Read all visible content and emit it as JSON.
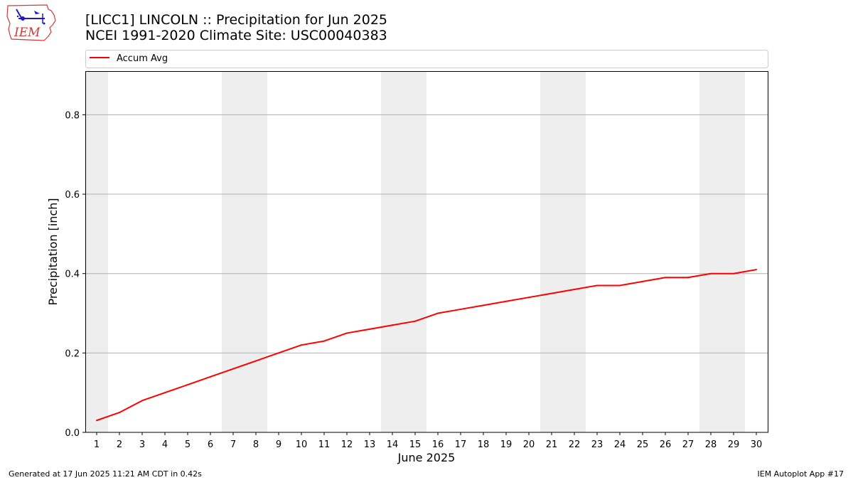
{
  "header": {
    "title_line1": "[LICC1] LINCOLN :: Precipitation for Jun 2025",
    "title_line2": "NCEI 1991-2020 Climate Site: USC00040383"
  },
  "logo": {
    "text": "IEM",
    "icon": "iem-logo-icon"
  },
  "footer": {
    "generated": "Generated at 17 Jun 2025 11:21 AM CDT in 0.42s",
    "app": "IEM Autoplot App #17"
  },
  "colors": {
    "line": "#ff0000",
    "weekend": "#eeeeee",
    "grid": "#b0b0b0"
  },
  "chart_data": {
    "type": "line",
    "xlabel": "June 2025",
    "ylabel": "Precipitation [inch]",
    "xlim": [
      0.5,
      30.5
    ],
    "ylim": [
      0,
      0.91
    ],
    "x": [
      1,
      2,
      3,
      4,
      5,
      6,
      7,
      8,
      9,
      10,
      11,
      12,
      13,
      14,
      15,
      16,
      17,
      18,
      19,
      20,
      21,
      22,
      23,
      24,
      25,
      26,
      27,
      28,
      29,
      30
    ],
    "x_tick_labels": [
      "1",
      "2",
      "3",
      "4",
      "5",
      "6",
      "7",
      "8",
      "9",
      "10",
      "11",
      "12",
      "13",
      "14",
      "15",
      "16",
      "17",
      "18",
      "19",
      "20",
      "21",
      "22",
      "23",
      "24",
      "25",
      "26",
      "27",
      "28",
      "29",
      "30"
    ],
    "y_ticks": [
      0.0,
      0.2,
      0.4,
      0.6,
      0.8
    ],
    "y_tick_labels": [
      "0.0",
      "0.2",
      "0.4",
      "0.6",
      "0.8"
    ],
    "grid": "horizontal",
    "legend_position": "top",
    "shaded_days": [
      1,
      7,
      8,
      14,
      15,
      21,
      22,
      28,
      29
    ],
    "series": [
      {
        "name": "Accum Avg",
        "color": "#ff0000",
        "values": [
          0.03,
          0.05,
          0.08,
          0.1,
          0.12,
          0.14,
          0.16,
          0.18,
          0.2,
          0.22,
          0.23,
          0.25,
          0.26,
          0.27,
          0.28,
          0.3,
          0.31,
          0.32,
          0.33,
          0.34,
          0.35,
          0.36,
          0.37,
          0.37,
          0.38,
          0.39,
          0.39,
          0.4,
          0.4,
          0.41
        ]
      }
    ]
  }
}
